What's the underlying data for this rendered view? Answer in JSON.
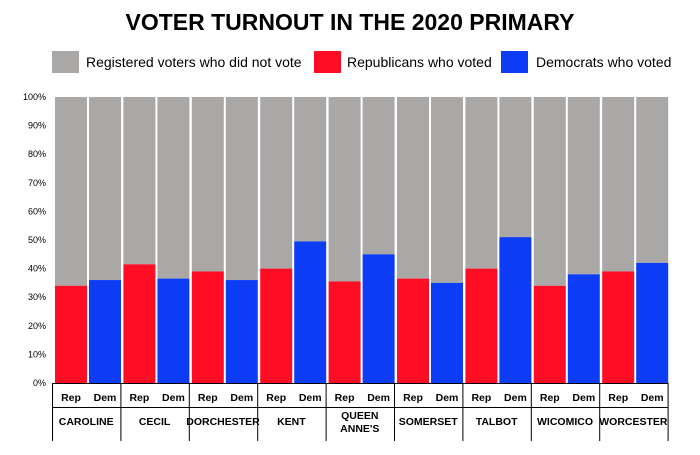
{
  "chart_data": {
    "type": "bar",
    "stacked": true,
    "title": "VOTER TURNOUT IN THE 2020 PRIMARY",
    "xlabel": "",
    "ylabel": "",
    "ylim": [
      0,
      100
    ],
    "yticks": [
      "0%",
      "10%",
      "20%",
      "30%",
      "40%",
      "50%",
      "60%",
      "70%",
      "80%",
      "90%",
      "100%"
    ],
    "legend_position": "top",
    "grid": false,
    "legend": [
      {
        "label": "Registered voters who did not vote",
        "color": "#aaa7a7"
      },
      {
        "label": "Republicans who voted",
        "color": "#ff0c25"
      },
      {
        "label": "Democrats who voted",
        "color": "#0d3cf5"
      }
    ],
    "colors": {
      "did_not_vote": "#aaa7a7",
      "republican": "#ff0c25",
      "democrat": "#0d3cf5"
    },
    "party_labels": {
      "rep": "Rep",
      "dem": "Dem"
    },
    "groups": [
      {
        "county": [
          "CAROLINE"
        ],
        "rep": 34,
        "dem": 36
      },
      {
        "county": [
          "CECIL"
        ],
        "rep": 41.5,
        "dem": 36.5
      },
      {
        "county": [
          "DORCHESTER"
        ],
        "rep": 39,
        "dem": 36
      },
      {
        "county": [
          "KENT"
        ],
        "rep": 40,
        "dem": 49.5
      },
      {
        "county": [
          "QUEEN",
          "ANNE'S"
        ],
        "rep": 35.5,
        "dem": 45
      },
      {
        "county": [
          "SOMERSET"
        ],
        "rep": 36.5,
        "dem": 35
      },
      {
        "county": [
          "TALBOT"
        ],
        "rep": 40,
        "dem": 51
      },
      {
        "county": [
          "WICOMICO"
        ],
        "rep": 34,
        "dem": 38
      },
      {
        "county": [
          "WORCESTER"
        ],
        "rep": 39,
        "dem": 42
      }
    ]
  }
}
